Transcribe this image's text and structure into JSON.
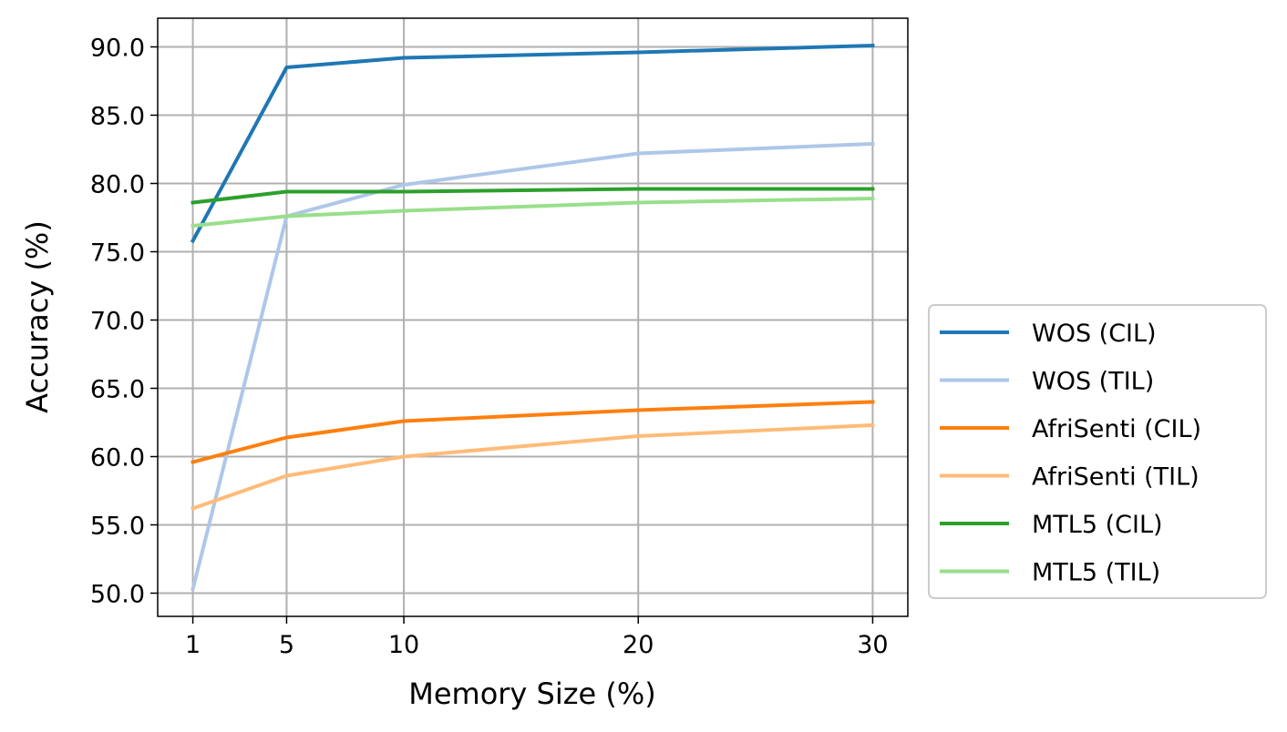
{
  "chart_data": {
    "type": "line",
    "title": "",
    "xlabel": "Memory Size (%)",
    "ylabel": "Accuracy (%)",
    "x": [
      1,
      5,
      10,
      20,
      30
    ],
    "xticks": [
      "1",
      "5",
      "10",
      "20",
      "30"
    ],
    "yticks": [
      "50.0",
      "55.0",
      "60.0",
      "65.0",
      "70.0",
      "75.0",
      "80.0",
      "85.0",
      "90.0"
    ],
    "xlim": [
      -0.5,
      31.5
    ],
    "ylim": [
      48.3,
      92.1
    ],
    "grid": true,
    "legend_position": "outside-right-bottom",
    "series": [
      {
        "name": "WOS (CIL)",
        "color": "#1f77b4",
        "values": [
          75.8,
          88.5,
          89.2,
          89.6,
          90.1
        ]
      },
      {
        "name": "WOS (TIL)",
        "color": "#aec7e8",
        "values": [
          50.3,
          77.6,
          79.9,
          82.2,
          82.9
        ]
      },
      {
        "name": "AfriSenti (CIL)",
        "color": "#ff7f0e",
        "values": [
          59.6,
          61.4,
          62.6,
          63.4,
          64.0
        ]
      },
      {
        "name": "AfriSenti (TIL)",
        "color": "#ffbb78",
        "values": [
          56.2,
          58.6,
          60.0,
          61.5,
          62.3
        ]
      },
      {
        "name": "MTL5 (CIL)",
        "color": "#2ca02c",
        "values": [
          78.6,
          79.4,
          79.4,
          79.6,
          79.6
        ]
      },
      {
        "name": "MTL5 (TIL)",
        "color": "#98df8a",
        "values": [
          76.9,
          77.6,
          78.0,
          78.6,
          78.9
        ]
      }
    ]
  }
}
